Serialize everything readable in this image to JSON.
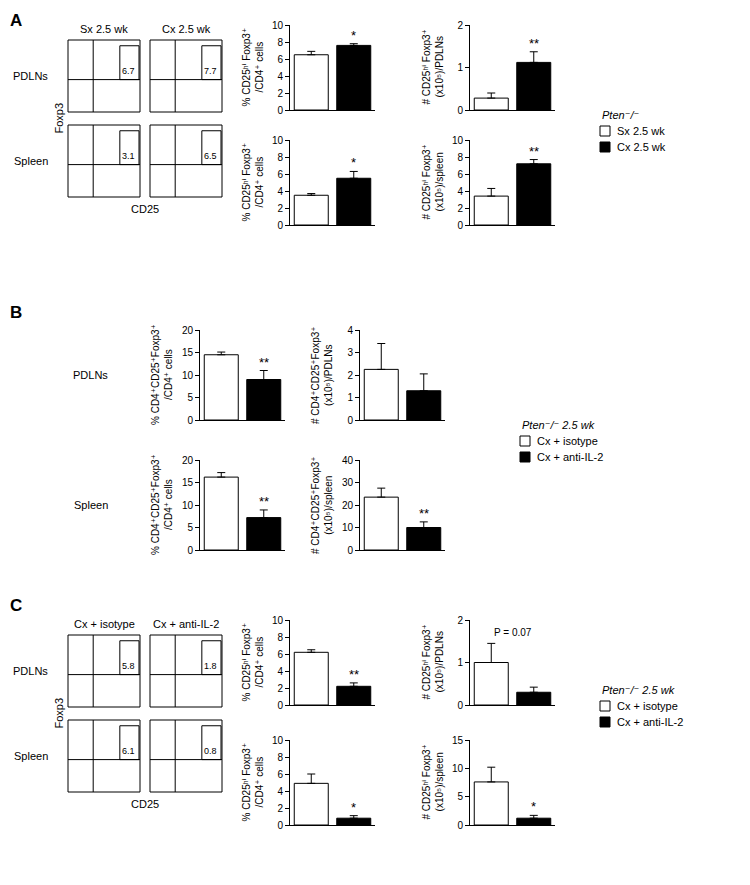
{
  "chart_data": [
    {
      "type": "bar",
      "label": "A",
      "legend_title": "Pten⁻/⁻",
      "rows": [
        "PDLNs",
        "Spleen"
      ],
      "series": [
        {
          "name": "Sx 2.5 wk",
          "color": "#ffffff"
        },
        {
          "name": "Cx 2.5 wk",
          "color": "#000000"
        }
      ],
      "flow": {
        "type": "flow",
        "x_label": "CD25",
        "y_label": "Foxp3",
        "columns": [
          "Sx 2.5 wk",
          "Cx 2.5 wk"
        ],
        "gates": [
          [
            6.7,
            7.7
          ],
          [
            3.1,
            6.5
          ]
        ],
        "tick_labels": false
      },
      "charts": [
        [
          {
            "type": "bar",
            "y_label": [
              "% CD25ʰⁱ Foxp3⁺",
              "/CD4⁺ cells"
            ],
            "ylim": [
              0,
              10
            ],
            "yticks": [
              0,
              2,
              4,
              6,
              8,
              10
            ],
            "values": [
              6.5,
              7.6
            ],
            "errors": [
              0.4,
              0.2
            ],
            "annotation": "*",
            "tick_labels": "y"
          },
          {
            "type": "bar",
            "y_label": [
              "# CD25ʰⁱ Foxp3⁺",
              "(x10⁵)/PDLNs"
            ],
            "ylim": [
              0,
              2
            ],
            "yticks": [
              0,
              1,
              2
            ],
            "values": [
              0.28,
              1.12
            ],
            "errors": [
              0.12,
              0.25
            ],
            "annotation": "**",
            "tick_labels": "y"
          }
        ],
        [
          {
            "type": "bar",
            "y_label": [
              "% CD25ʰⁱ Foxp3⁺",
              "/CD4⁺ cells"
            ],
            "ylim": [
              0,
              10
            ],
            "yticks": [
              0,
              2,
              4,
              6,
              8,
              10
            ],
            "values": [
              3.5,
              5.5
            ],
            "errors": [
              0.2,
              0.8
            ],
            "annotation": "*",
            "tick_labels": "y"
          },
          {
            "type": "bar",
            "y_label": [
              "# CD25ʰⁱ Foxp3⁺",
              "(x10⁵)/spleen"
            ],
            "ylim": [
              0,
              10
            ],
            "yticks": [
              0,
              2,
              4,
              6,
              8,
              10
            ],
            "values": [
              3.4,
              7.2
            ],
            "errors": [
              0.9,
              0.5
            ],
            "annotation": "**",
            "tick_labels": "y"
          }
        ]
      ]
    },
    {
      "type": "bar",
      "label": "B",
      "legend_title": "Pten⁻/⁻ 2.5 wk",
      "rows": [
        "PDLNs",
        "Spleen"
      ],
      "series": [
        {
          "name": "Cx + isotype",
          "color": "#ffffff"
        },
        {
          "name": "Cx + anti-IL-2",
          "color": "#000000"
        }
      ],
      "charts": [
        [
          {
            "type": "bar",
            "y_label": [
              "% CD4⁺CD25⁺Foxp3⁺",
              "/CD4⁺ cells"
            ],
            "ylim": [
              0,
              20
            ],
            "yticks": [
              0,
              5,
              10,
              15,
              20
            ],
            "values": [
              14.5,
              9.0
            ],
            "errors": [
              0.6,
              2.0
            ],
            "annotation": "**",
            "tick_labels": "y"
          },
          {
            "type": "bar",
            "y_label": [
              "# CD4⁺CD25⁺Foxp3⁺",
              "(x10⁵)/PDLNs"
            ],
            "ylim": [
              0,
              4
            ],
            "yticks": [
              0,
              1,
              2,
              3,
              4
            ],
            "values": [
              2.25,
              1.3
            ],
            "errors": [
              1.15,
              0.75
            ],
            "tick_labels": "y"
          }
        ],
        [
          {
            "type": "bar",
            "y_label": [
              "% CD4⁺CD25⁺Foxp3⁺",
              "/CD4⁺ cells"
            ],
            "ylim": [
              0,
              20
            ],
            "yticks": [
              0,
              5,
              10,
              15,
              20
            ],
            "values": [
              16.2,
              7.2
            ],
            "errors": [
              1.0,
              1.7
            ],
            "annotation": "**",
            "tick_labels": "y"
          },
          {
            "type": "bar",
            "y_label": [
              "# CD4⁺CD25⁺Foxp3⁺",
              "(x10⁵)/spleen"
            ],
            "ylim": [
              0,
              40
            ],
            "yticks": [
              0,
              10,
              20,
              30,
              40
            ],
            "values": [
              23.5,
              10.0
            ],
            "errors": [
              4.0,
              2.5
            ],
            "annotation": "**",
            "tick_labels": "y"
          }
        ]
      ]
    },
    {
      "type": "bar",
      "label": "C",
      "legend_title": "Pten⁻/⁻ 2.5 wk",
      "rows": [
        "PDLNs",
        "Spleen"
      ],
      "series": [
        {
          "name": "Cx + isotype",
          "color": "#ffffff"
        },
        {
          "name": "Cx + anti-IL-2",
          "color": "#000000"
        }
      ],
      "flow": {
        "type": "flow",
        "x_label": "CD25",
        "y_label": "Foxp3",
        "columns": [
          "Cx + isotype",
          "Cx + anti-IL-2"
        ],
        "gates": [
          [
            5.8,
            1.8
          ],
          [
            6.1,
            0.8
          ]
        ],
        "tick_labels": false
      },
      "charts": [
        [
          {
            "type": "bar",
            "y_label": [
              "% CD25ʰⁱ Foxp3⁺",
              "/CD4⁺ cells"
            ],
            "ylim": [
              0,
              10
            ],
            "yticks": [
              0,
              2,
              4,
              6,
              8,
              10
            ],
            "values": [
              6.2,
              2.2
            ],
            "errors": [
              0.3,
              0.4
            ],
            "annotation": "**",
            "tick_labels": "y"
          },
          {
            "type": "bar",
            "y_label": [
              "# CD25ʰⁱ Foxp3⁺",
              "(x10⁵)/PDLNs"
            ],
            "ylim": [
              0,
              2
            ],
            "yticks": [
              0,
              1,
              2
            ],
            "values": [
              1.0,
              0.3
            ],
            "errors": [
              0.45,
              0.12
            ],
            "annotation": "P = 0.07",
            "tick_labels": "y"
          }
        ],
        [
          {
            "type": "bar",
            "y_label": [
              "% CD25ʰⁱ Foxp3⁺",
              "/CD4⁺ cells"
            ],
            "ylim": [
              0,
              10
            ],
            "yticks": [
              0,
              2,
              4,
              6,
              8,
              10
            ],
            "values": [
              4.9,
              0.8
            ],
            "errors": [
              1.1,
              0.3
            ],
            "annotation": "*",
            "tick_labels": "y"
          },
          {
            "type": "bar",
            "y_label": [
              "# CD25ʰⁱ Foxp3⁺",
              "(x10⁵)/spleen"
            ],
            "ylim": [
              0,
              15
            ],
            "yticks": [
              0,
              5,
              10,
              15
            ],
            "values": [
              7.6,
              1.2
            ],
            "errors": [
              2.6,
              0.5
            ],
            "annotation": "*",
            "tick_labels": "y"
          }
        ]
      ]
    }
  ]
}
